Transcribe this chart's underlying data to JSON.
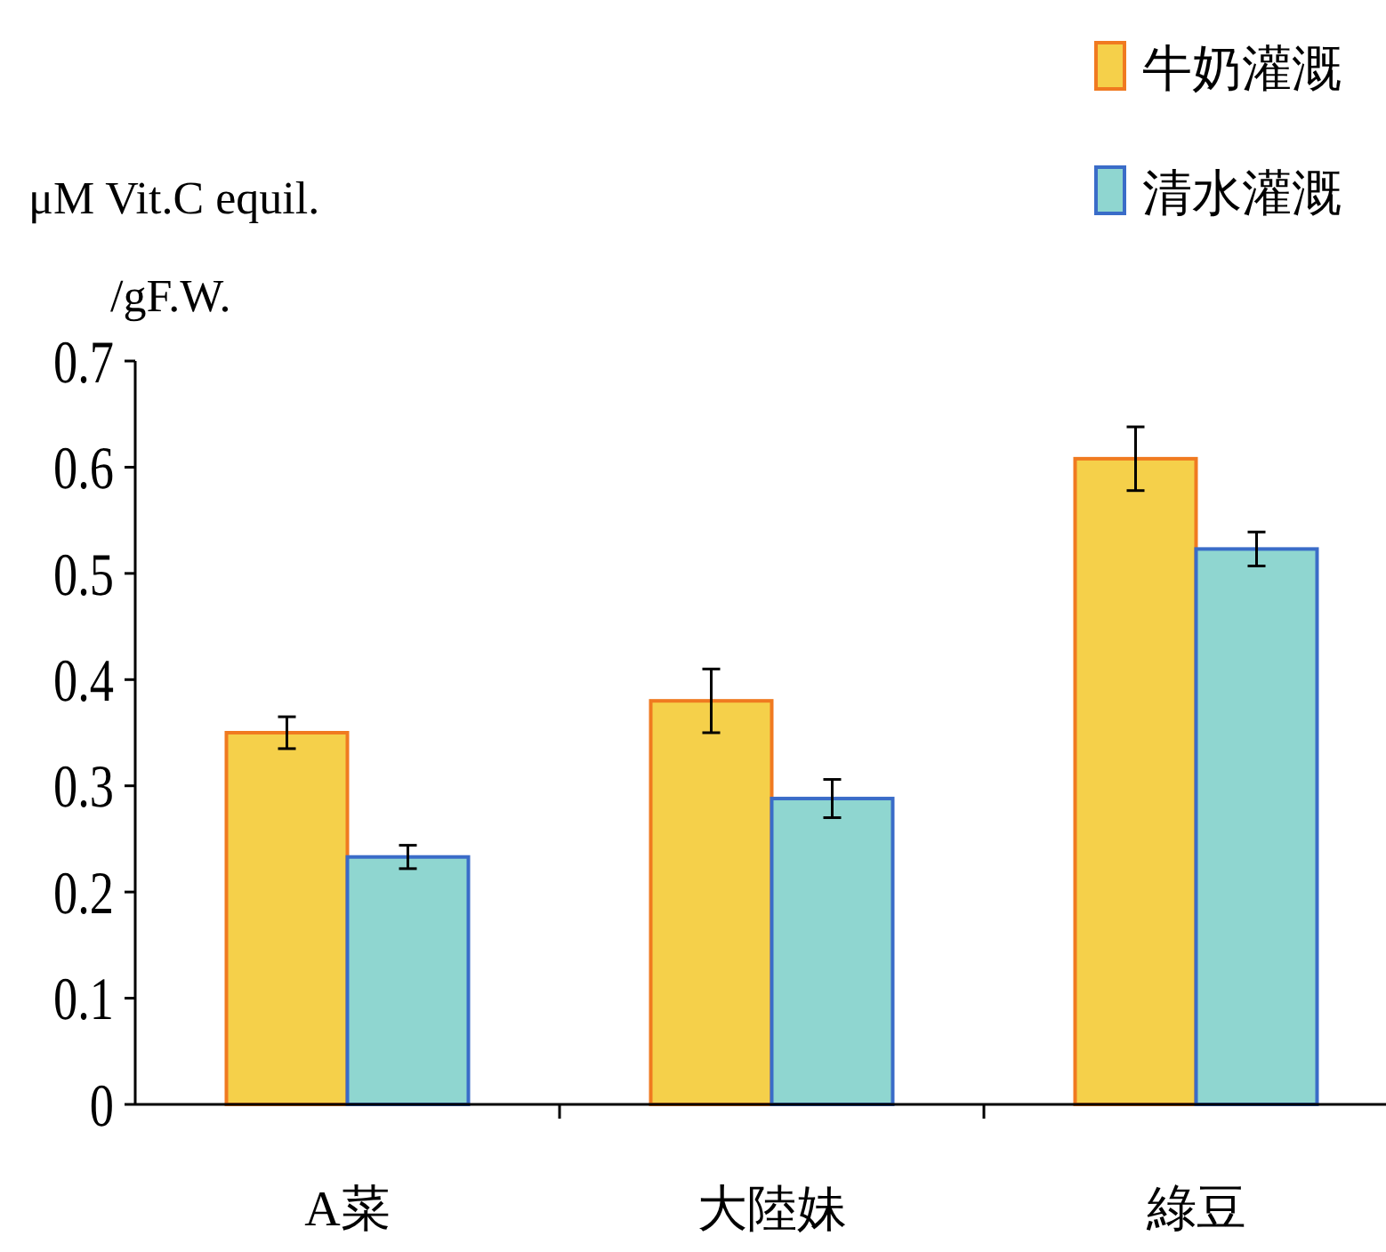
{
  "chart_data": {
    "type": "bar",
    "ylabel": "μM Vit.C equil.\n/gF.W.",
    "categories": [
      "A菜",
      "大陸妹",
      "綠豆"
    ],
    "series": [
      {
        "name": "牛奶灌溉",
        "color": "#f5d04a",
        "values": [
          0.35,
          0.38,
          0.608
        ],
        "errors": [
          0.015,
          0.03,
          0.03
        ]
      },
      {
        "name": "清水灌溉",
        "color": "#8fd6d0",
        "values": [
          0.233,
          0.288,
          0.523
        ],
        "errors": [
          0.011,
          0.018,
          0.016
        ]
      }
    ],
    "ylim": [
      0,
      0.7
    ],
    "yticks": [
      0,
      0.1,
      0.2,
      0.3,
      0.4,
      0.5,
      0.6,
      0.7
    ],
    "grid": false,
    "legend": "top right"
  }
}
